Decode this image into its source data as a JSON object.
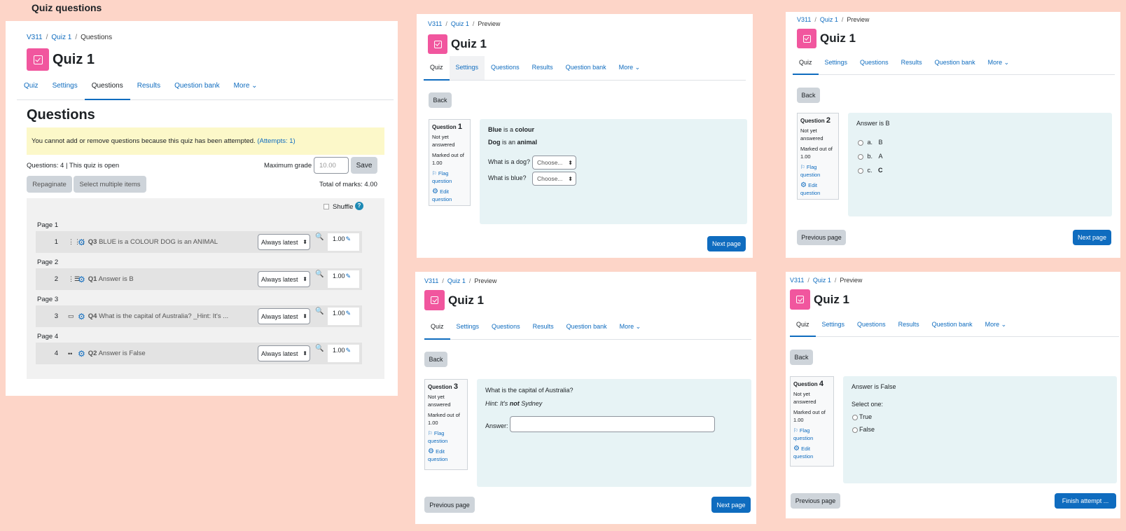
{
  "heading": "Quiz questions",
  "crumb": {
    "course": "V311",
    "quiz": "Quiz 1",
    "questions": "Questions",
    "preview": "Preview",
    "sep": "/"
  },
  "quiz_title": "Quiz 1",
  "tabs": {
    "quiz": "Quiz",
    "settings": "Settings",
    "questions": "Questions",
    "results": "Results",
    "bank": "Question bank",
    "more": "More ⌄"
  },
  "editor": {
    "title": "Questions",
    "warning": "You cannot add or remove questions because this quiz has been attempted.",
    "attempts": "(Attempts: 1)",
    "status": "Questions: 4 | This quiz is open",
    "max_grade_label": "Maximum grade",
    "max_grade_placeholder": "10.00",
    "save": "Save",
    "repaginate": "Repaginate",
    "select_multiple": "Select multiple items",
    "total": "Total of marks: 4.00",
    "shuffle": "Shuffle",
    "help": "?",
    "pages": [
      {
        "label": "Page 1",
        "num": "1",
        "type_icon": "⋮⋮⋮",
        "qid": "Q3",
        "text": "BLUE is a COLOUR DOG is an ANIMAL",
        "version": "Always latest",
        "mark": "1.00"
      },
      {
        "label": "Page 2",
        "num": "2",
        "type_icon": "⋮☰",
        "qid": "Q1",
        "text": "Answer is B",
        "version": "Always latest",
        "mark": "1.00"
      },
      {
        "label": "Page 3",
        "num": "3",
        "type_icon": "▭",
        "qid": "Q4",
        "text": "What is the capital of Australia? _Hint: It's ...",
        "version": "Always latest",
        "mark": "1.00"
      },
      {
        "label": "Page 4",
        "num": "4",
        "type_icon": "••",
        "qid": "Q2",
        "text": "Answer is False",
        "version": "Always latest",
        "mark": "1.00"
      }
    ]
  },
  "common": {
    "back": "Back",
    "question": "Question",
    "not_answered": "Not yet answered",
    "marked_out": "Marked out of",
    "marked_value": "1.00",
    "flag": "Flag question",
    "edit": "Edit question",
    "next": "Next page",
    "prev": "Previous page",
    "finish": "Finish attempt ...",
    "choose": "Choose..."
  },
  "preview1": {
    "qnum": "1",
    "line1_pre": "Blue",
    "line1_mid": " is a ",
    "line1_end": "colour",
    "line2_pre": "Dog",
    "line2_mid": " is an ",
    "line2_end": "animal",
    "q_dog": "What is a dog?",
    "q_blue": "What is blue?"
  },
  "preview2": {
    "qnum": "2",
    "prompt": "Answer is B",
    "options": [
      {
        "letter": "a.",
        "text": "B"
      },
      {
        "letter": "b.",
        "text": "A"
      },
      {
        "letter": "c.",
        "text": "C"
      }
    ]
  },
  "preview3": {
    "qnum": "3",
    "prompt": "What is the capital of Australia?",
    "hint_a": "Hint: It's ",
    "hint_b": "not",
    "hint_c": " Sydney",
    "answer": "Answer:"
  },
  "preview4": {
    "qnum": "4",
    "prompt": "Answer is False",
    "select_one": "Select one:",
    "opt_true": "True",
    "opt_false": "False"
  },
  "icons": {
    "gear": "⚙",
    "magnify": "🔍",
    "pencil": "✎",
    "flag": "⚐"
  },
  "colors": {
    "accent": "#0f6cbf",
    "quiz_icon": "#f1569e",
    "question_bg": "#e7f3f5",
    "warning_bg": "#fcf8c9",
    "background": "#fdd5c8"
  }
}
